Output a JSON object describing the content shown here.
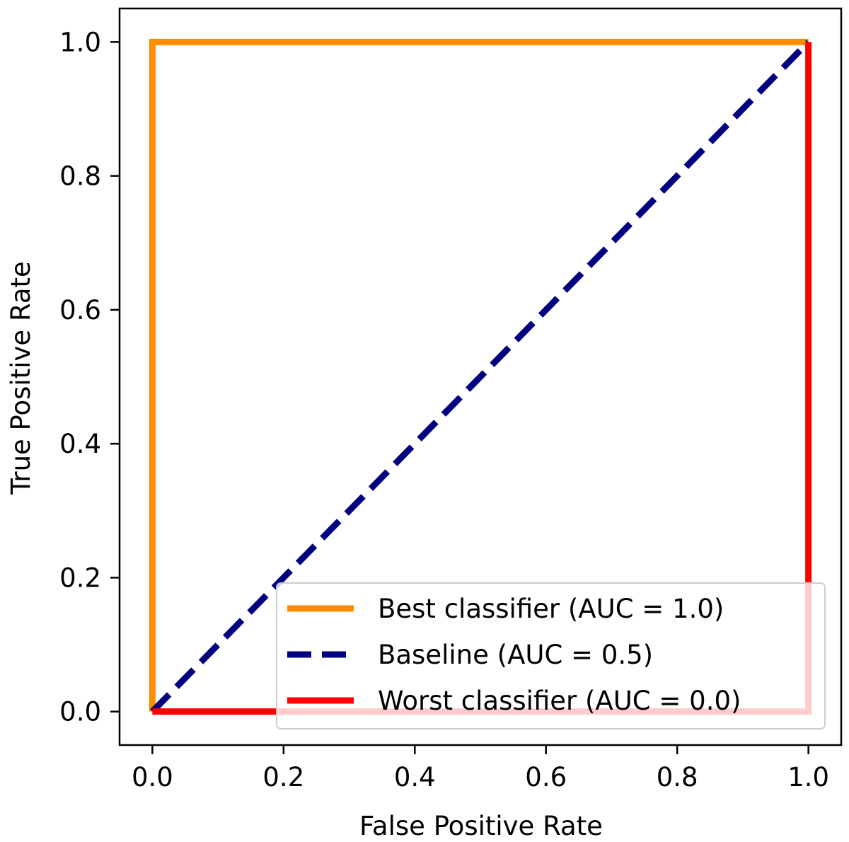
{
  "chart_data": {
    "type": "line",
    "title": "",
    "xlabel": "False Positive Rate",
    "ylabel": "True Positive Rate",
    "xlim": [
      -0.05,
      1.05
    ],
    "ylim": [
      -0.05,
      1.05
    ],
    "xticks": [
      0.0,
      0.2,
      0.4,
      0.6,
      0.8,
      1.0
    ],
    "yticks": [
      0.0,
      0.2,
      0.4,
      0.6,
      0.8,
      1.0
    ],
    "xtick_labels": [
      "0.0",
      "0.2",
      "0.4",
      "0.6",
      "0.8",
      "1.0"
    ],
    "ytick_labels": [
      "0.0",
      "0.2",
      "0.4",
      "0.6",
      "0.8",
      "1.0"
    ],
    "grid": false,
    "legend_position": "bottom-right",
    "series": [
      {
        "name": "Best classifier (AUC = 1.0)",
        "color": "#ff8c00",
        "dash": "solid",
        "x": [
          0.0,
          0.0,
          1.0
        ],
        "y": [
          0.0,
          1.0,
          1.0
        ]
      },
      {
        "name": "Baseline (AUC = 0.5)",
        "color": "#000080",
        "dash": "dashed",
        "x": [
          0.0,
          1.0
        ],
        "y": [
          0.0,
          1.0
        ]
      },
      {
        "name": "Worst classifier (AUC = 0.0)",
        "color": "#ff0000",
        "dash": "solid",
        "x": [
          0.0,
          1.0,
          1.0
        ],
        "y": [
          0.0,
          0.0,
          1.0
        ]
      }
    ]
  }
}
